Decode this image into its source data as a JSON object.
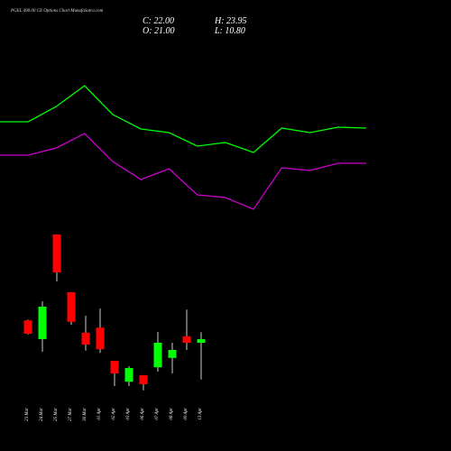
{
  "header": {
    "title": "PGEL 490.00 CE Options Chart MunafaSutra.com",
    "close": "C: 22.00",
    "high": "H: 23.95",
    "open": "O: 21.00",
    "low": "L: 10.80"
  },
  "chart_data": [
    {
      "type": "candlestick",
      "categories": [
        "23 Mar",
        "24 Mar",
        "25 Mar",
        "27 Mar",
        "30 Mar",
        "01 Apr",
        "02 Apr",
        "03 Apr",
        "06 Apr",
        "07 Apr",
        "08 Apr",
        "09 Apr",
        "13 Apr"
      ],
      "open": [
        27.2,
        22,
        51,
        35,
        23.8,
        25.2,
        16,
        10.2,
        12,
        14.2,
        16.8,
        22.8,
        21
      ],
      "high": [
        27.4,
        32.5,
        51,
        35,
        28.5,
        30.5,
        16,
        14.5,
        12,
        24,
        21,
        30.2,
        23.95
      ],
      "low": [
        23.3,
        18.5,
        38,
        26,
        18.8,
        18.2,
        9,
        9,
        7.8,
        13,
        12.5,
        19,
        10.8
      ],
      "close": [
        23.5,
        31,
        40.5,
        26.8,
        20.5,
        19.2,
        12.5,
        14,
        9.5,
        21,
        19,
        21,
        22
      ],
      "up_color": "#00ff00",
      "down_color": "#ff0000",
      "ylim": [
        1,
        111
      ]
    },
    {
      "type": "line",
      "categories": [
        null,
        null,
        null,
        null,
        null,
        null,
        null,
        null,
        null,
        null,
        null,
        null,
        null,
        null
      ],
      "series": [
        {
          "color": "#00ff00",
          "values": [
            82.25,
            82.25,
            86.5,
            92.25,
            84.25,
            80.25,
            79.25,
            75.5,
            76.5,
            73.75,
            80.5,
            79.25,
            80.75,
            80.5
          ]
        },
        {
          "color": "#cc00cc",
          "values": [
            73,
            73,
            75,
            79,
            71.25,
            66.25,
            69.25,
            62,
            61.25,
            58,
            69.5,
            68.75,
            70.75,
            70.75
          ]
        }
      ],
      "ylim": [
        1,
        111
      ]
    }
  ]
}
